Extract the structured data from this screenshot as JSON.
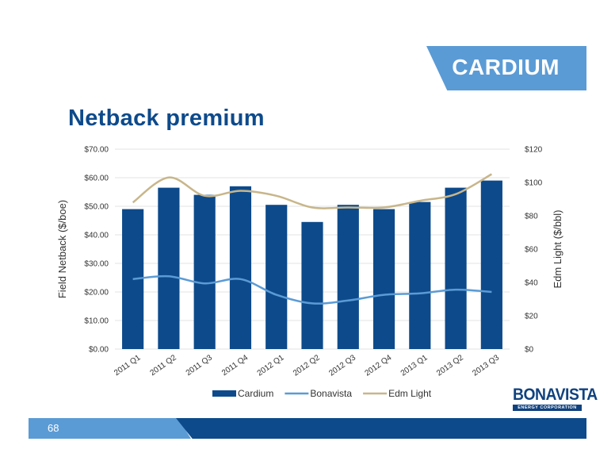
{
  "header": {
    "banner_label": "CARDIUM",
    "title": "Netback premium"
  },
  "chart_data": {
    "type": "bar",
    "title": "",
    "categories": [
      "2011 Q1",
      "2011 Q2",
      "2011 Q3",
      "2011 Q4",
      "2012 Q1",
      "2012 Q2",
      "2012 Q3",
      "2012 Q4",
      "2013 Q1",
      "2013 Q2",
      "2013 Q3"
    ],
    "series": [
      {
        "name": "Cardium",
        "type": "bar",
        "axis": "left",
        "color": "#0d4a8b",
        "values": [
          49,
          56.5,
          54,
          57,
          50.5,
          44.5,
          50.5,
          49,
          51.5,
          56.5,
          59
        ]
      },
      {
        "name": "Bonavista",
        "type": "line",
        "axis": "left",
        "color": "#5b9bd5",
        "values": [
          24.5,
          25.5,
          23,
          24.5,
          19,
          16,
          17,
          19,
          19.5,
          20.8,
          20
        ]
      },
      {
        "name": "Edm Light",
        "type": "line",
        "axis": "right",
        "color": "#c8b68a",
        "values": [
          88,
          103,
          92,
          95,
          92,
          85,
          85,
          85,
          89,
          93,
          105
        ]
      }
    ],
    "ylabel": "Field Netback ($/boe)",
    "y2label": "Edm Light ($/bbl)",
    "ylim": [
      0,
      70
    ],
    "y2lim": [
      0,
      120
    ],
    "y_ticks": [
      "$0.00",
      "$10.00",
      "$20.00",
      "$30.00",
      "$40.00",
      "$50.00",
      "$60.00",
      "$70.00"
    ],
    "y2_ticks": [
      "$0",
      "$20",
      "$40",
      "$60",
      "$80",
      "$100",
      "$120"
    ],
    "grid": true,
    "legend_position": "bottom"
  },
  "logo": {
    "name": "BONAVISTA",
    "tagline": "ENERGY CORPORATION"
  },
  "footer": {
    "page_number": "68"
  }
}
